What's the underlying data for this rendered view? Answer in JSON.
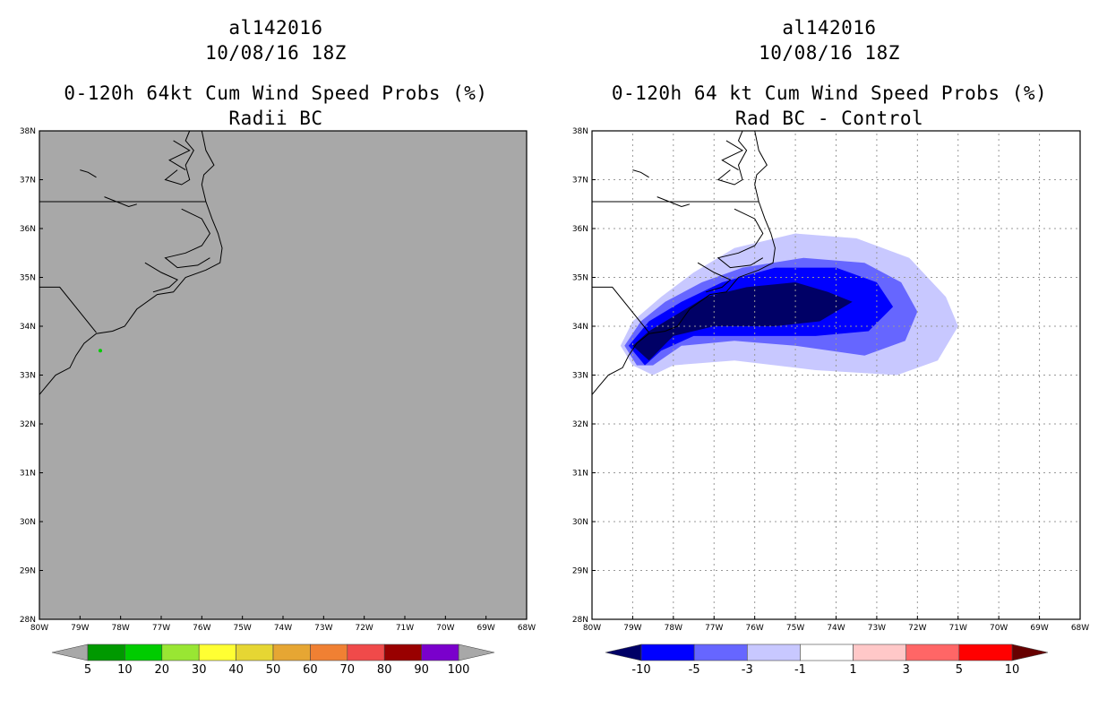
{
  "left_panel": {
    "title_line1": "al142016",
    "title_line2": "10/08/16 18Z",
    "title_line3": "0-120h 64kt Cum Wind Speed Probs (%)",
    "title_line4": "Radii BC",
    "background_color": "#a8a8a8",
    "colorbar": {
      "colors": [
        "#009900",
        "#00cc00",
        "#99e633",
        "#ffff33",
        "#e6d633",
        "#e6a633",
        "#f08033",
        "#f04a4a",
        "#990000",
        "#7a00cc"
      ],
      "labels": [
        "5",
        "10",
        "20",
        "30",
        "40",
        "50",
        "60",
        "70",
        "80",
        "90",
        "100"
      ]
    }
  },
  "right_panel": {
    "title_line1": "al142016",
    "title_line2": "10/08/16 18Z",
    "title_line3": "0-120h 64 kt Cum Wind Speed Probs (%)",
    "title_line4": "Rad BC - Control",
    "colorbar": {
      "colors": [
        "#000066",
        "#0000ff",
        "#6666ff",
        "#c8c8ff",
        "#ffffff",
        "#ffc8c8",
        "#ff6666",
        "#ff0000",
        "#660000"
      ],
      "labels": [
        "-10",
        "-5",
        "-3",
        "-1",
        "1",
        "3",
        "5",
        "10"
      ]
    }
  },
  "axes": {
    "lat_labels": [
      "38N",
      "37N",
      "36N",
      "35N",
      "34N",
      "33N",
      "32N",
      "31N",
      "30N",
      "29N",
      "28N"
    ],
    "lon_labels": [
      "80W",
      "79W",
      "78W",
      "77W",
      "76W",
      "75W",
      "74W",
      "73W",
      "72W",
      "71W",
      "70W",
      "69W",
      "68W"
    ]
  },
  "chart_data": {
    "type": "map",
    "domain": {
      "lon_range": [
        -80,
        -68
      ],
      "lat_range": [
        28,
        38
      ]
    },
    "storm_id": "al142016",
    "valid_time": "10/08/16 18Z",
    "difference_contours": [
      {
        "level": "-1 to -3",
        "color": "#c8c8ff",
        "polygon_lonlat": [
          [
            -79.3,
            33.6
          ],
          [
            -79.0,
            34.1
          ],
          [
            -78.3,
            34.6
          ],
          [
            -77.5,
            35.1
          ],
          [
            -76.5,
            35.6
          ],
          [
            -75.0,
            35.9
          ],
          [
            -73.5,
            35.8
          ],
          [
            -72.2,
            35.4
          ],
          [
            -71.3,
            34.6
          ],
          [
            -71.0,
            34.0
          ],
          [
            -71.5,
            33.3
          ],
          [
            -72.5,
            33.0
          ],
          [
            -74.5,
            33.1
          ],
          [
            -76.5,
            33.3
          ],
          [
            -78.0,
            33.2
          ],
          [
            -78.5,
            33.0
          ],
          [
            -79.0,
            33.2
          ]
        ]
      },
      {
        "level": "-3 to -5",
        "color": "#6666ff",
        "polygon_lonlat": [
          [
            -79.2,
            33.6
          ],
          [
            -78.8,
            34.1
          ],
          [
            -78.2,
            34.5
          ],
          [
            -77.3,
            34.9
          ],
          [
            -76.3,
            35.2
          ],
          [
            -74.8,
            35.4
          ],
          [
            -73.3,
            35.3
          ],
          [
            -72.4,
            34.9
          ],
          [
            -72.0,
            34.3
          ],
          [
            -72.3,
            33.7
          ],
          [
            -73.3,
            33.4
          ],
          [
            -75.0,
            33.6
          ],
          [
            -76.5,
            33.7
          ],
          [
            -77.8,
            33.6
          ],
          [
            -78.5,
            33.2
          ],
          [
            -78.9,
            33.2
          ]
        ]
      },
      {
        "level": "-5 to -10",
        "color": "#0000ff",
        "polygon_lonlat": [
          [
            -79.1,
            33.6
          ],
          [
            -78.6,
            34.1
          ],
          [
            -77.8,
            34.5
          ],
          [
            -76.8,
            34.9
          ],
          [
            -75.5,
            35.2
          ],
          [
            -74.0,
            35.2
          ],
          [
            -73.0,
            34.9
          ],
          [
            -72.6,
            34.4
          ],
          [
            -73.2,
            33.9
          ],
          [
            -74.5,
            33.8
          ],
          [
            -76.0,
            33.8
          ],
          [
            -77.5,
            33.8
          ],
          [
            -78.3,
            33.5
          ],
          [
            -78.7,
            33.2
          ]
        ]
      },
      {
        "level": "< -10",
        "color": "#000066",
        "polygon_lonlat": [
          [
            -79.0,
            33.6
          ],
          [
            -78.6,
            33.9
          ],
          [
            -78.0,
            34.2
          ],
          [
            -77.2,
            34.6
          ],
          [
            -76.2,
            34.8
          ],
          [
            -75.0,
            34.9
          ],
          [
            -74.2,
            34.7
          ],
          [
            -73.6,
            34.5
          ],
          [
            -74.4,
            34.1
          ],
          [
            -75.5,
            34.0
          ],
          [
            -77.0,
            34.0
          ],
          [
            -78.0,
            33.8
          ],
          [
            -78.6,
            33.3
          ]
        ]
      }
    ],
    "left_point": {
      "lon": -78.5,
      "lat": 33.5,
      "color": "#00cc00"
    }
  }
}
